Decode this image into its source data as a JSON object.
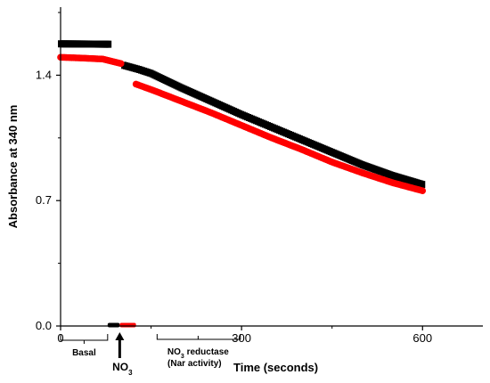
{
  "chart_data": {
    "type": "scatter",
    "title": "",
    "xlabel": "Time (seconds)",
    "ylabel": "Absorbance at 340 nm",
    "xlim": [
      0,
      700
    ],
    "ylim": [
      0,
      1.78
    ],
    "x_ticks": [
      0,
      300,
      600
    ],
    "y_ticks": [
      0.0,
      0.7,
      1.4
    ],
    "y_tick_labels": [
      "0.0",
      "0.7",
      "1.4"
    ],
    "grid": false,
    "legend": "none",
    "series": [
      {
        "color": "#000000",
        "segments": [
          [
            [
              0,
              1.575
            ],
            [
              80,
              1.573
            ]
          ],
          [
            [
              105,
              1.455
            ],
            [
              130,
              1.432
            ],
            [
              150,
              1.41
            ],
            [
              200,
              1.33
            ],
            [
              250,
              1.255
            ],
            [
              300,
              1.18
            ],
            [
              350,
              1.11
            ],
            [
              400,
              1.04
            ],
            [
              450,
              0.97
            ],
            [
              500,
              0.9
            ],
            [
              550,
              0.84
            ],
            [
              600,
              0.79
            ]
          ]
        ]
      },
      {
        "color": "#ff0000",
        "segments": [
          [
            [
              0,
              1.5
            ],
            [
              40,
              1.495
            ],
            [
              70,
              1.49
            ],
            [
              100,
              1.465
            ]
          ],
          [
            [
              125,
              1.35
            ],
            [
              150,
              1.32
            ],
            [
              200,
              1.255
            ],
            [
              250,
              1.19
            ],
            [
              300,
              1.12
            ],
            [
              350,
              1.05
            ],
            [
              400,
              0.985
            ],
            [
              450,
              0.915
            ],
            [
              500,
              0.855
            ],
            [
              550,
              0.8
            ],
            [
              600,
              0.755
            ]
          ]
        ]
      }
    ],
    "baseline_marks": [
      {
        "color": "#000000",
        "x": [
          78,
          98
        ],
        "y": 0.0
      },
      {
        "color": "#ff0000",
        "x": [
          98,
          125
        ],
        "y": 0.0
      }
    ],
    "annotations": {
      "basal": "Basal",
      "no3_base": "NO",
      "no3_sub": "3",
      "reductase_base": "NO",
      "reductase_sub": "3",
      "reductase_rest": " reductase",
      "nar_activity": "(Nar activity)"
    },
    "colors": {
      "black_series": "#000000",
      "red_series": "#ff0000"
    }
  }
}
